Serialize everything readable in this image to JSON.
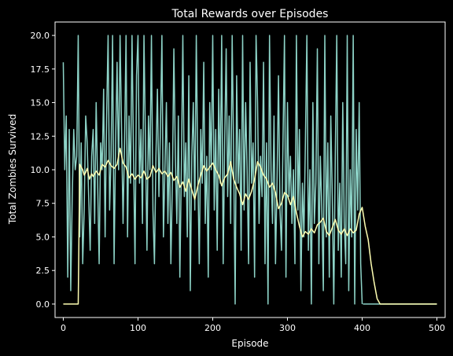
{
  "chart_data": {
    "type": "line",
    "title": "Total Rewards over Episodes",
    "xlabel": "Episode",
    "ylabel": "Total Zombies Survived",
    "xlim": [
      -11,
      511
    ],
    "ylim": [
      -1,
      21
    ],
    "xticks": [
      0,
      100,
      200,
      300,
      400,
      500
    ],
    "xtick_labels": [
      "0",
      "100",
      "200",
      "300",
      "400",
      "500"
    ],
    "yticks": [
      0,
      2.5,
      5,
      7.5,
      10,
      12.5,
      15,
      17.5,
      20
    ],
    "ytick_labels": [
      "0.0",
      "2.5",
      "5.0",
      "7.5",
      "10.0",
      "12.5",
      "15.0",
      "17.5",
      "20.0"
    ],
    "grid": false,
    "legend": "none",
    "background": "#000000",
    "raw_episode_range": [
      0,
      500
    ],
    "raw_reward_range": [
      0,
      20
    ],
    "raw_end": {
      "from_episode": 401,
      "to_episode": 500,
      "value": 0
    },
    "series": [
      {
        "color": "#8dd3c7",
        "x": [
          0,
          2,
          4,
          6,
          8,
          10,
          12,
          14,
          16,
          18,
          20,
          22,
          24,
          26,
          28,
          30,
          32,
          34,
          36,
          38,
          40,
          42,
          44,
          46,
          48,
          50,
          52,
          54,
          56,
          58,
          60,
          62,
          64,
          66,
          68,
          70,
          72,
          74,
          76,
          78,
          80,
          82,
          84,
          86,
          88,
          90,
          92,
          94,
          96,
          98,
          100,
          102,
          104,
          106,
          108,
          110,
          112,
          114,
          116,
          118,
          120,
          122,
          124,
          126,
          128,
          130,
          132,
          134,
          136,
          138,
          140,
          142,
          144,
          146,
          148,
          150,
          152,
          154,
          156,
          158,
          160,
          162,
          164,
          166,
          168,
          170,
          172,
          174,
          176,
          178,
          180,
          182,
          184,
          186,
          188,
          190,
          192,
          194,
          196,
          198,
          200,
          202,
          204,
          206,
          208,
          210,
          212,
          214,
          216,
          218,
          220,
          222,
          224,
          226,
          228,
          230,
          232,
          234,
          236,
          238,
          240,
          242,
          244,
          246,
          248,
          250,
          252,
          254,
          256,
          258,
          260,
          262,
          264,
          266,
          268,
          270,
          272,
          274,
          276,
          278,
          280,
          282,
          284,
          286,
          288,
          290,
          292,
          294,
          296,
          298,
          300,
          302,
          304,
          306,
          308,
          310,
          312,
          314,
          316,
          318,
          320,
          322,
          324,
          326,
          328,
          330,
          332,
          334,
          336,
          338,
          340,
          342,
          344,
          346,
          348,
          350,
          352,
          354,
          356,
          358,
          360,
          362,
          364,
          366,
          368,
          370,
          372,
          374,
          376,
          378,
          380,
          382,
          384,
          386,
          388,
          390,
          392,
          394,
          396,
          398,
          400
        ],
        "values": [
          18,
          10,
          14,
          2,
          13,
          1,
          8,
          13,
          10,
          11,
          20,
          5,
          12,
          3,
          7,
          14,
          12,
          8,
          4,
          11,
          13,
          6,
          15,
          9,
          3,
          12,
          10,
          16,
          5,
          14,
          20,
          7,
          11,
          20,
          3,
          12,
          18,
          10,
          20,
          13,
          6,
          12,
          20,
          5,
          14,
          9,
          20,
          11,
          3,
          17,
          20,
          9,
          13,
          6,
          20,
          12,
          4,
          14,
          10,
          20,
          7,
          3,
          11,
          16,
          8,
          13,
          20,
          5,
          10,
          15,
          6,
          12,
          3,
          9,
          19,
          11,
          6,
          14,
          2,
          10,
          20,
          8,
          12,
          5,
          17,
          1,
          11,
          15,
          7,
          20,
          10,
          3,
          13,
          9,
          18,
          6,
          11,
          2,
          15,
          10,
          20,
          7,
          13,
          4,
          16,
          9,
          20,
          3,
          12,
          19,
          8,
          14,
          6,
          20,
          11,
          0,
          17,
          9,
          13,
          4,
          20,
          7,
          15,
          10,
          3,
          18,
          9,
          12,
          2,
          20,
          15,
          6,
          11,
          8,
          18,
          3,
          12,
          0,
          20,
          10,
          6,
          14,
          3,
          9,
          17,
          7,
          4,
          12,
          20,
          2,
          15,
          8,
          11,
          6,
          10,
          3,
          20,
          7,
          13,
          1,
          9,
          5,
          12,
          20,
          4,
          10,
          0,
          15,
          6,
          9,
          19,
          3,
          11,
          7,
          1,
          20,
          5,
          12,
          2,
          14,
          8,
          0,
          11,
          20,
          4,
          9,
          2,
          15,
          6,
          3,
          20,
          1,
          10,
          5,
          20,
          0,
          13,
          7,
          15,
          3,
          0
        ]
      },
      {
        "color": "#ffffb3",
        "x": [
          0,
          5,
          10,
          15,
          20,
          22,
          24,
          26,
          28,
          30,
          32,
          35,
          38,
          40,
          44,
          48,
          52,
          56,
          60,
          64,
          68,
          72,
          76,
          80,
          84,
          88,
          92,
          96,
          100,
          104,
          108,
          112,
          116,
          120,
          124,
          128,
          132,
          136,
          140,
          144,
          148,
          152,
          156,
          160,
          164,
          168,
          172,
          176,
          180,
          184,
          188,
          192,
          196,
          200,
          204,
          208,
          212,
          216,
          220,
          224,
          228,
          232,
          236,
          240,
          244,
          248,
          252,
          256,
          260,
          264,
          268,
          272,
          276,
          280,
          284,
          288,
          292,
          296,
          300,
          304,
          308,
          312,
          316,
          320,
          324,
          328,
          332,
          336,
          340,
          344,
          348,
          352,
          356,
          360,
          364,
          368,
          372,
          376,
          380,
          384,
          388,
          392,
          396,
          400,
          404,
          408,
          412,
          416,
          420,
          424,
          430,
          440,
          460,
          480,
          500
        ],
        "values": [
          0,
          0,
          0,
          0,
          0,
          10.4,
          10.2,
          10.0,
          9.6,
          9.8,
          10.1,
          9.3,
          9.7,
          9.5,
          9.9,
          9.6,
          10.4,
          10.2,
          10.7,
          10.3,
          10.1,
          10.4,
          11.6,
          10.5,
          10.2,
          9.4,
          9.7,
          9.3,
          9.6,
          9.4,
          9.9,
          9.3,
          9.5,
          10.3,
          9.8,
          10.1,
          9.7,
          9.9,
          9.5,
          9.8,
          9.2,
          9.5,
          8.7,
          9.1,
          8.4,
          9.3,
          8.5,
          7.8,
          8.8,
          9.6,
          10.3,
          9.9,
          10.2,
          10.5,
          10.0,
          9.6,
          8.8,
          9.4,
          9.7,
          10.6,
          9.3,
          8.7,
          8.2,
          7.4,
          8.2,
          7.8,
          8.4,
          9.3,
          10.6,
          10.2,
          9.6,
          9.3,
          8.7,
          9.0,
          8.3,
          7.1,
          7.5,
          8.3,
          8.1,
          7.4,
          8.0,
          6.8,
          5.8,
          5.0,
          5.4,
          5.2,
          5.6,
          5.3,
          5.9,
          6.1,
          6.4,
          5.4,
          5.1,
          5.7,
          6.3,
          5.5,
          5.2,
          5.6,
          5.1,
          5.6,
          5.3,
          5.5,
          6.7,
          7.2,
          5.8,
          4.8,
          3.0,
          1.6,
          0.4,
          0,
          0,
          0,
          0,
          0,
          0
        ]
      }
    ]
  }
}
